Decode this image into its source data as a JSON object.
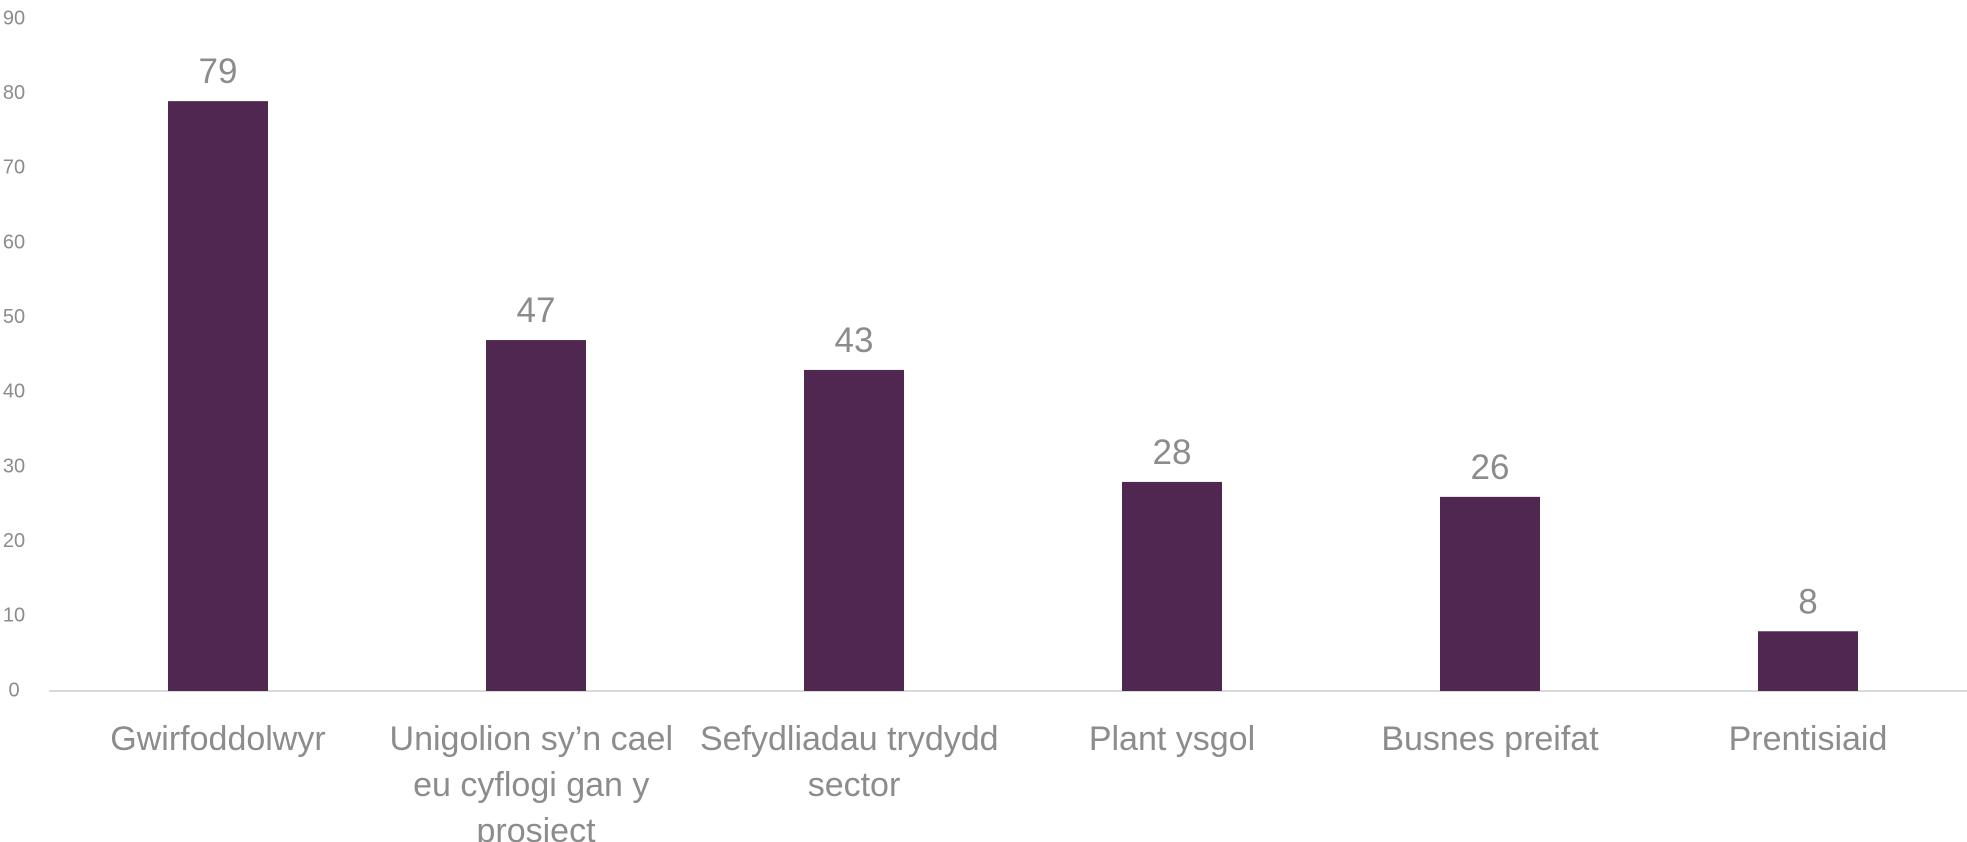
{
  "chart_data": {
    "type": "bar",
    "categories": [
      "Gwirfoddolwyr",
      "Unigolion sy’n cael eu cyflogi gan y prosiect",
      "Sefydliadau trydydd sector",
      "Plant ysgol",
      "Busnes preifat",
      "Prentisiaid"
    ],
    "values": [
      79,
      47,
      43,
      28,
      26,
      8
    ],
    "color": "#4f2750",
    "ylim": [
      0,
      90
    ],
    "yticks": [
      0,
      10,
      20,
      30,
      40,
      50,
      60,
      70,
      80,
      90
    ],
    "grid": false
  }
}
